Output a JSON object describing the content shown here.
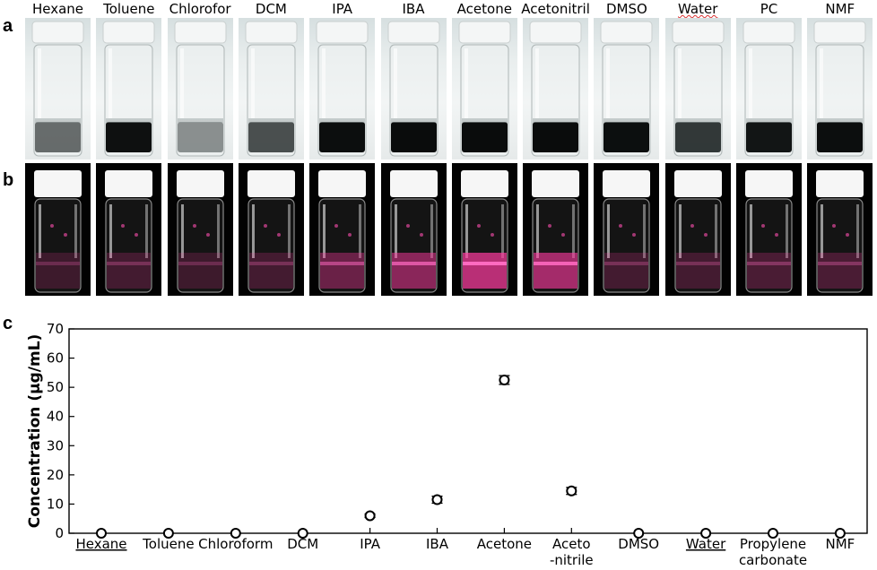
{
  "panels": {
    "a": "a",
    "b": "b",
    "c": "c"
  },
  "solvents": [
    {
      "label": "Hexane",
      "spell": false,
      "solution_color": "#3a3f3f",
      "solution_opacity": 0.75,
      "glow": 0.05
    },
    {
      "label": "Toluene",
      "spell": false,
      "solution_color": "#0e1010",
      "solution_opacity": 1.0,
      "glow": 0.1
    },
    {
      "label": "Chloroform",
      "spell": false,
      "solution_color": "#555a5a",
      "solution_opacity": 0.65,
      "glow": 0.05
    },
    {
      "label": "DCM",
      "spell": false,
      "solution_color": "#2d3232",
      "solution_opacity": 0.85,
      "glow": 0.1
    },
    {
      "label": "IPA",
      "spell": false,
      "solution_color": "#0c0e0e",
      "solution_opacity": 1.0,
      "glow": 0.4
    },
    {
      "label": "IBA",
      "spell": false,
      "solution_color": "#0a0c0c",
      "solution_opacity": 1.0,
      "glow": 0.65
    },
    {
      "label": "Acetone",
      "spell": false,
      "solution_color": "#0a0c0c",
      "solution_opacity": 1.0,
      "glow": 1.0
    },
    {
      "label": "Acetonitrile",
      "spell": false,
      "solution_color": "#0a0c0c",
      "solution_opacity": 1.0,
      "glow": 0.85
    },
    {
      "label": "DMSO",
      "spell": false,
      "solution_color": "#0c0f0f",
      "solution_opacity": 1.0,
      "glow": 0.1
    },
    {
      "label": "Water",
      "spell": true,
      "solution_color": "#1d2424",
      "solution_opacity": 0.9,
      "glow": 0.1
    },
    {
      "label": "PC",
      "spell": false,
      "solution_color": "#121515",
      "solution_opacity": 1.0,
      "glow": 0.15
    },
    {
      "label": "NMF",
      "spell": false,
      "solution_color": "#0c0e0e",
      "solution_opacity": 1.0,
      "glow": 0.15
    }
  ],
  "chart_data": {
    "type": "scatter",
    "ylabel": "Concentration (μg/mL)",
    "ylim": [
      0,
      70
    ],
    "yticks": [
      0,
      10,
      20,
      30,
      40,
      50,
      60,
      70
    ],
    "categories": [
      {
        "lines": [
          "Hexane"
        ],
        "spell": true
      },
      {
        "lines": [
          "Toluene"
        ],
        "spell": false
      },
      {
        "lines": [
          "Chloroform"
        ],
        "spell": false
      },
      {
        "lines": [
          "DCM"
        ],
        "spell": false
      },
      {
        "lines": [
          "IPA"
        ],
        "spell": false
      },
      {
        "lines": [
          "IBA"
        ],
        "spell": false
      },
      {
        "lines": [
          "Acetone"
        ],
        "spell": false
      },
      {
        "lines": [
          "Aceto",
          "-nitrile"
        ],
        "spell": false
      },
      {
        "lines": [
          "DMSO"
        ],
        "spell": false
      },
      {
        "lines": [
          "Water"
        ],
        "spell": true
      },
      {
        "lines": [
          "Propylene",
          "carbonate"
        ],
        "spell": false
      },
      {
        "lines": [
          "NMF"
        ],
        "spell": false
      }
    ],
    "values": [
      0,
      0,
      0,
      0,
      6,
      11.5,
      52.5,
      14.5,
      0,
      0,
      0,
      0
    ],
    "errors": [
      0,
      0,
      0,
      0,
      0.6,
      1.2,
      1.5,
      1.2,
      0,
      0,
      0,
      0
    ],
    "grid": false
  }
}
